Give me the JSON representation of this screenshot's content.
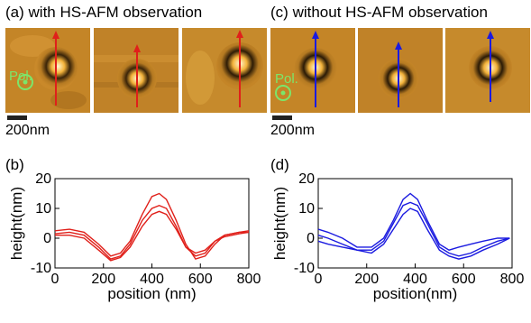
{
  "panels": {
    "a": {
      "label": "(a)",
      "title": "with HS-AFM observation"
    },
    "c": {
      "label": "(c)",
      "title": "without HS-AFM observation"
    },
    "b": {
      "label": "(b)"
    },
    "d": {
      "label": "(d)"
    }
  },
  "afm": {
    "pol_label": "Pol.",
    "scale_label": "200nm",
    "arrow_color_a": "#e0201a",
    "arrow_color_c": "#1a1ae0",
    "pol_color": "#7ce66a"
  },
  "chart_data": [
    {
      "type": "line",
      "panel": "(b)",
      "xlabel": "position (nm)",
      "ylabel": "height(nm)",
      "xlim": [
        0,
        800
      ],
      "ylim": [
        -10,
        20
      ],
      "xticks": [
        0,
        200,
        400,
        600,
        800
      ],
      "yticks": [
        -10,
        0,
        10,
        20
      ],
      "color": "#e0201a",
      "series": [
        {
          "x": [
            0,
            60,
            120,
            180,
            230,
            270,
            310,
            360,
            400,
            430,
            460,
            500,
            540,
            580,
            620,
            660,
            700,
            760,
            800
          ],
          "values": [
            2.5,
            3,
            2,
            -2,
            -6,
            -5,
            -1,
            8,
            14,
            15,
            13,
            6,
            -2,
            -7,
            -6,
            -2,
            1,
            2,
            2.5
          ]
        },
        {
          "x": [
            0,
            60,
            120,
            180,
            230,
            270,
            310,
            360,
            400,
            430,
            460,
            500,
            540,
            580,
            620,
            660,
            700,
            760,
            800
          ],
          "values": [
            1.5,
            2,
            1,
            -3,
            -7,
            -6,
            -2,
            6,
            10,
            11,
            10,
            4,
            -3,
            -6,
            -5,
            -1,
            1,
            2,
            2
          ]
        },
        {
          "x": [
            0,
            60,
            120,
            180,
            230,
            270,
            310,
            360,
            400,
            430,
            460,
            500,
            540,
            580,
            620,
            660,
            700,
            760,
            800
          ],
          "values": [
            1,
            1,
            0,
            -4,
            -7.5,
            -6.5,
            -3,
            4,
            8,
            9,
            8,
            3,
            -3,
            -5,
            -4,
            -1,
            0.5,
            1.5,
            2
          ]
        }
      ]
    },
    {
      "type": "line",
      "panel": "(d)",
      "xlabel": "position(nm)",
      "ylabel": "height(nm)",
      "xlim": [
        0,
        800
      ],
      "ylim": [
        -10,
        20
      ],
      "xticks": [
        0,
        200,
        400,
        600,
        800
      ],
      "yticks": [
        -10,
        0,
        10,
        20
      ],
      "color": "#1a1ae0",
      "series": [
        {
          "x": [
            0,
            40,
            100,
            160,
            220,
            270,
            310,
            350,
            380,
            410,
            450,
            500,
            540,
            580,
            630,
            680,
            740,
            790
          ],
          "values": [
            3,
            2,
            0,
            -3,
            -3,
            0,
            6,
            13,
            15,
            13,
            6,
            -2,
            -4,
            -3,
            -2,
            -1,
            0,
            0
          ]
        },
        {
          "x": [
            0,
            40,
            100,
            160,
            220,
            270,
            310,
            350,
            380,
            410,
            450,
            500,
            540,
            580,
            630,
            680,
            740,
            790
          ],
          "values": [
            1,
            0,
            -2,
            -4,
            -4,
            -1,
            5,
            11,
            12,
            11,
            5,
            -3,
            -5,
            -6,
            -5,
            -3,
            -1,
            0
          ]
        },
        {
          "x": [
            0,
            40,
            100,
            160,
            220,
            270,
            310,
            350,
            380,
            410,
            450,
            500,
            540,
            580,
            630,
            680,
            740,
            790
          ],
          "values": [
            -1,
            -2,
            -3,
            -4,
            -5,
            -2,
            3,
            8,
            10,
            9,
            3,
            -4,
            -6,
            -7,
            -6,
            -4,
            -2,
            0
          ]
        }
      ]
    }
  ]
}
